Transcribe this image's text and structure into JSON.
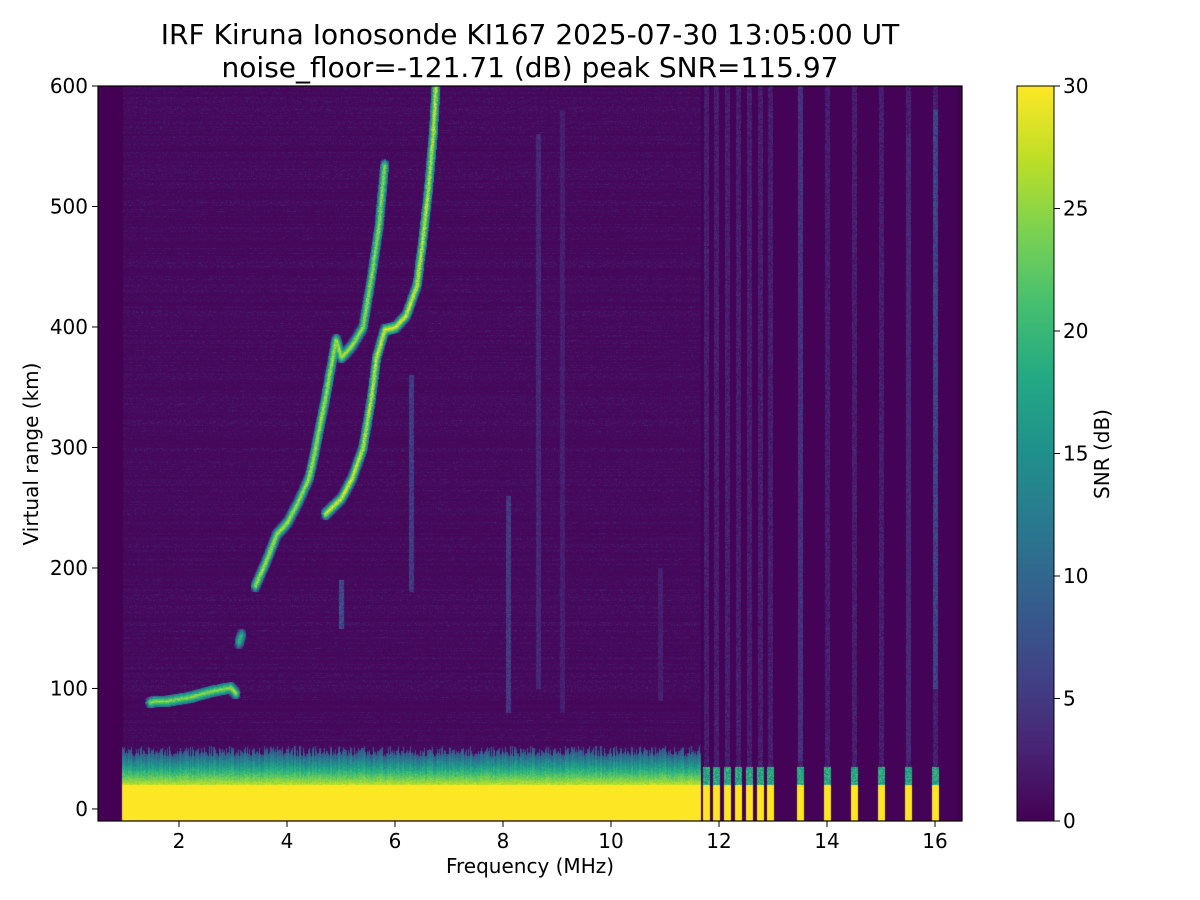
{
  "chart_data": {
    "type": "heatmap",
    "title": "IRF Kiruna Ionosonde KI167 2025-07-30 13:05:00  UT",
    "subtitle": "noise_floor=-121.71 (dB) peak SNR=115.97",
    "xlabel": "Frequency (MHz)",
    "ylabel": "Virtual range (km)",
    "xlim": [
      0.5,
      16.5
    ],
    "ylim": [
      -10,
      600
    ],
    "x_ticks": [
      2,
      4,
      6,
      8,
      10,
      12,
      14,
      16
    ],
    "y_ticks": [
      0,
      100,
      200,
      300,
      400,
      500,
      600
    ],
    "grid": false,
    "colormap": "viridis",
    "colorbar": {
      "label": "SNR (dB)",
      "range": [
        0,
        30
      ],
      "ticks": [
        0,
        5,
        10,
        15,
        20,
        25,
        30
      ]
    },
    "background_snr": 0.5,
    "sweep_start_mhz": 0.95,
    "sweep_end_mhz": 16.4,
    "continuous_sweep_end_mhz": 11.65,
    "discrete_channels_mhz": [
      11.75,
      11.95,
      12.15,
      12.35,
      12.55,
      12.75,
      12.95,
      13.5,
      14.0,
      14.5,
      15.0,
      15.5,
      16.0
    ],
    "ground_echo_km": [
      -10,
      20
    ],
    "ground_echo_snr": 30,
    "traces": [
      {
        "points": [
          [
            1.45,
            89
          ],
          [
            1.8,
            90
          ],
          [
            2.2,
            93
          ],
          [
            2.6,
            98
          ],
          [
            2.95,
            101
          ],
          [
            3.05,
            96
          ]
        ],
        "snr": 24
      },
      {
        "points": [
          [
            3.1,
            138
          ],
          [
            3.15,
            145
          ]
        ],
        "snr": 18
      },
      {
        "points": [
          [
            3.4,
            185
          ],
          [
            3.6,
            205
          ],
          [
            3.8,
            228
          ],
          [
            4.0,
            238
          ],
          [
            4.2,
            255
          ],
          [
            4.4,
            275
          ],
          [
            4.5,
            295
          ],
          [
            4.6,
            318
          ],
          [
            4.7,
            340
          ],
          [
            4.8,
            365
          ],
          [
            4.9,
            390
          ],
          [
            5.0,
            375
          ],
          [
            5.2,
            385
          ],
          [
            5.4,
            400
          ],
          [
            5.55,
            440
          ],
          [
            5.7,
            485
          ],
          [
            5.8,
            535
          ]
        ],
        "snr": 25
      },
      {
        "points": [
          [
            4.7,
            245
          ],
          [
            5.0,
            258
          ],
          [
            5.2,
            275
          ],
          [
            5.4,
            300
          ],
          [
            5.55,
            340
          ],
          [
            5.65,
            375
          ],
          [
            5.8,
            398
          ],
          [
            6.0,
            400
          ],
          [
            6.2,
            410
          ],
          [
            6.4,
            435
          ],
          [
            6.5,
            470
          ],
          [
            6.6,
            510
          ],
          [
            6.7,
            560
          ],
          [
            6.75,
            600
          ]
        ],
        "snr": 27
      }
    ],
    "vertical_streaks": [
      {
        "x": 8.1,
        "range": [
          80,
          260
        ],
        "snr": 6
      },
      {
        "x": 8.65,
        "range": [
          100,
          560
        ],
        "snr": 4
      },
      {
        "x": 5.0,
        "range": [
          150,
          190
        ],
        "snr": 8
      },
      {
        "x": 6.3,
        "range": [
          180,
          360
        ],
        "snr": 6
      },
      {
        "x": 9.1,
        "range": [
          80,
          580
        ],
        "snr": 3
      },
      {
        "x": 10.9,
        "range": [
          90,
          200
        ],
        "snr": 3
      },
      {
        "x": 13.5,
        "range": [
          40,
          600
        ],
        "snr": 5
      },
      {
        "x": 15.5,
        "range": [
          40,
          560
        ],
        "snr": 4
      },
      {
        "x": 16.0,
        "range": [
          100,
          580
        ],
        "snr": 7
      }
    ]
  }
}
